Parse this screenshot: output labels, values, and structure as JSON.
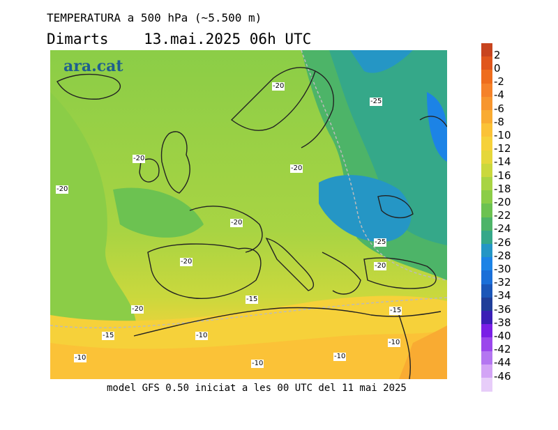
{
  "header": {
    "title": "TEMPERATURA a 500 hPa (~5.500 m)",
    "subtitle": "Dimarts    13.mai.2025 06h UTC"
  },
  "brand": {
    "name": "ara.cat",
    "color": "#1f5f8f"
  },
  "footer": {
    "text": "model GFS 0.50 iniciat a les 00 UTC del 11 mai 2025"
  },
  "map": {
    "contour_labels": [
      "-20",
      "-25",
      "-20",
      "-20",
      "-20",
      "-20",
      "-25",
      "-20",
      "-20",
      "-15",
      "-15",
      "-20",
      "-15",
      "-10",
      "-10",
      "-10",
      "-10",
      "-10"
    ]
  },
  "legend": {
    "labels": [
      "2",
      "0",
      "-2",
      "-4",
      "-6",
      "-8",
      "-10",
      "-12",
      "-14",
      "-16",
      "-18",
      "-20",
      "-22",
      "-24",
      "-26",
      "-28",
      "-30",
      "-32",
      "-34",
      "-36",
      "-38",
      "-40",
      "-42",
      "-44",
      "-46"
    ],
    "colors": [
      "#c8441e",
      "#e0561c",
      "#ee6d1d",
      "#f5822a",
      "#f7962f",
      "#f9ab32",
      "#fbc237",
      "#f6d13a",
      "#e5d73b",
      "#cad83d",
      "#a8d443",
      "#8bcd47",
      "#6cc251",
      "#4db468",
      "#35a889",
      "#2596c5",
      "#1c83e6",
      "#1b6fd8",
      "#1b56b8",
      "#1f3e99",
      "#3a1fb6",
      "#7a1fe6",
      "#9b47ec",
      "#b476f1",
      "#d3a4f6",
      "#e7cdf9"
    ]
  }
}
